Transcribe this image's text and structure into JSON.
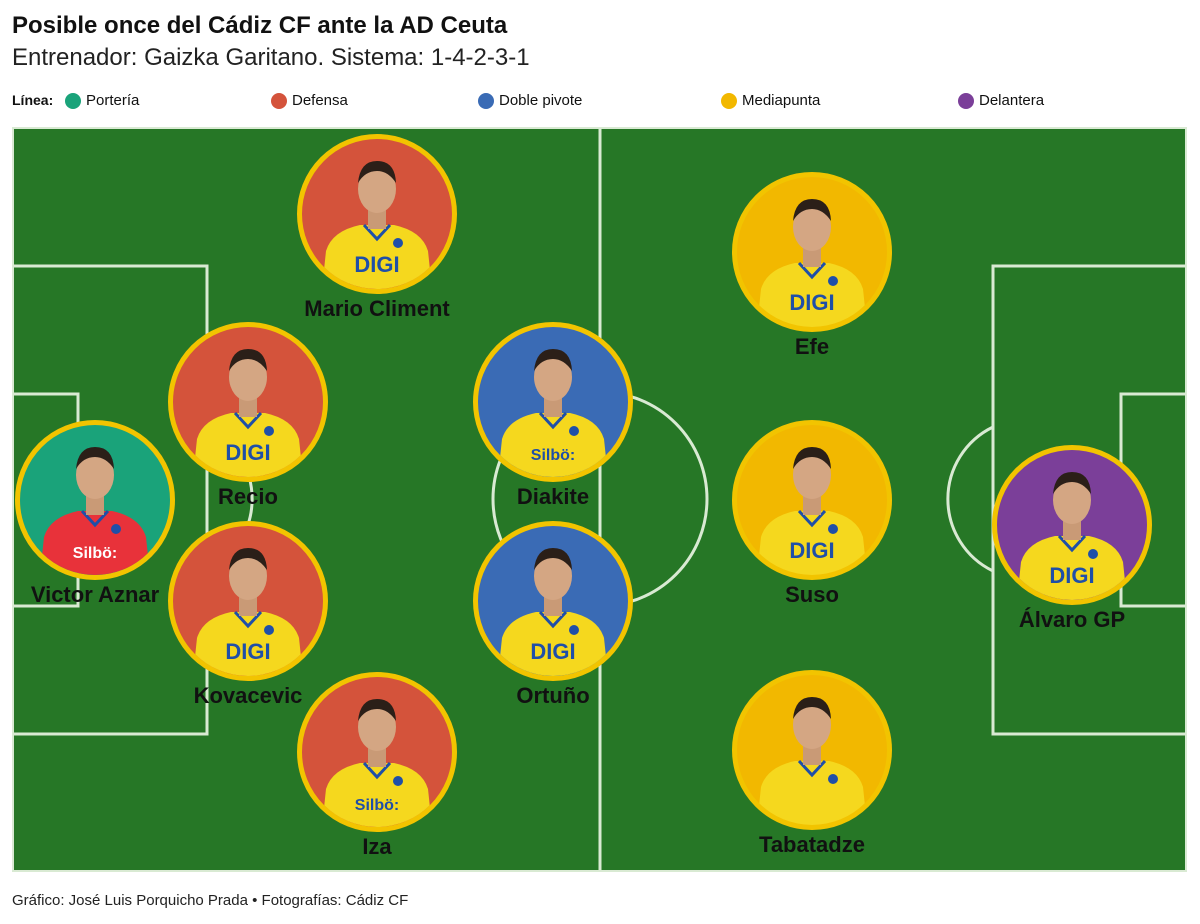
{
  "title": "Posible once del Cádiz CF ante la AD Ceuta",
  "subtitle": "Entrenador: Gaizka Garitano. Sistema: 1-4-2-3-1",
  "legend": {
    "label": "Línea:",
    "items": [
      {
        "name": "Portería",
        "color": "#1aa37a"
      },
      {
        "name": "Defensa",
        "color": "#d4533b"
      },
      {
        "name": "Doble pivote",
        "color": "#3a6bb5"
      },
      {
        "name": "Mediapunta",
        "color": "#f2b800"
      },
      {
        "name": "Delantera",
        "color": "#7b3f99"
      }
    ]
  },
  "colors": {
    "pitch": "#267726",
    "lines": "#d9ead3",
    "ring": "#f2c400",
    "shirt_yellow": "#f5d81e",
    "shirt_keeper": "#e8323a"
  },
  "players": [
    {
      "name": "Victor Aznar",
      "line": "Portería",
      "shirt_text": "Silbö:"
    },
    {
      "name": "Mario Climent",
      "line": "Defensa",
      "shirt_text": "DIGI"
    },
    {
      "name": "Recio",
      "line": "Defensa",
      "shirt_text": "DIGI"
    },
    {
      "name": "Kovacevic",
      "line": "Defensa",
      "shirt_text": "DIGI"
    },
    {
      "name": "Iza",
      "line": "Defensa",
      "shirt_text": "Silbö:"
    },
    {
      "name": "Diakite",
      "line": "Doble pivote",
      "shirt_text": "Silbö:"
    },
    {
      "name": "Ortuño",
      "line": "Doble pivote",
      "shirt_text": "DIGI"
    },
    {
      "name": "Efe",
      "line": "Mediapunta",
      "shirt_text": "DIGI"
    },
    {
      "name": "Suso",
      "line": "Mediapunta",
      "shirt_text": "DIGI"
    },
    {
      "name": "Tabatadze",
      "line": "Mediapunta",
      "shirt_text": ""
    },
    {
      "name": "Álvaro GP",
      "line": "Delantera",
      "shirt_text": "DIGI"
    }
  ],
  "credit": "Gráfico: José Luis Porquicho Prada • Fotografías: Cádiz CF"
}
